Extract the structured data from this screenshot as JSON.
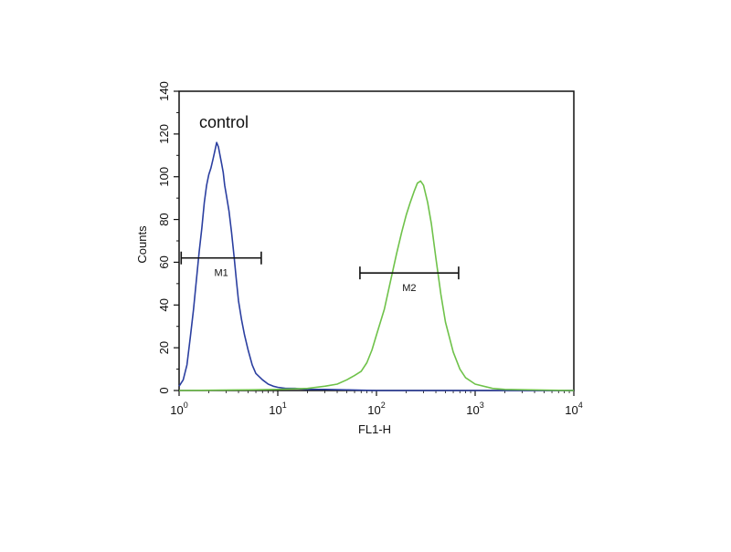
{
  "chart_data": {
    "type": "line",
    "title": "",
    "annotation": "control",
    "xlabel": "FL1-H",
    "ylabel": "Counts",
    "xscale": "log",
    "xlim": [
      1,
      10000
    ],
    "ylim": [
      0,
      140
    ],
    "yticks": [
      "0",
      "20",
      "40",
      "60",
      "80",
      "100",
      "120",
      "140"
    ],
    "xticks": [
      {
        "base": "10",
        "exp": "0",
        "value": 1
      },
      {
        "base": "10",
        "exp": "1",
        "value": 10
      },
      {
        "base": "10",
        "exp": "2",
        "value": 100
      },
      {
        "base": "10",
        "exp": "3",
        "value": 1000
      },
      {
        "base": "10",
        "exp": "4",
        "value": 10000
      }
    ],
    "grid": false,
    "series": [
      {
        "color": "#2b3fa0",
        "x": [
          1.0,
          1.1,
          1.2,
          1.3,
          1.4,
          1.5,
          1.6,
          1.7,
          1.8,
          1.9,
          2.0,
          2.1,
          2.2,
          2.3,
          2.4,
          2.5,
          2.6,
          2.7,
          2.8,
          2.9,
          3.0,
          3.2,
          3.4,
          3.6,
          3.8,
          4.0,
          4.3,
          4.6,
          5.0,
          5.5,
          6.0,
          7.0,
          8.0,
          9.0,
          10,
          12,
          15,
          20,
          30,
          50,
          100,
          1000,
          10000
        ],
        "y": [
          2,
          5,
          12,
          25,
          38,
          52,
          65,
          76,
          88,
          96,
          101,
          104,
          108,
          112,
          116,
          114,
          110,
          106,
          102,
          96,
          92,
          84,
          74,
          63,
          52,
          42,
          33,
          26,
          19,
          12,
          8,
          5,
          3,
          2,
          1.5,
          1,
          1,
          0.5,
          0.5,
          0.3,
          0,
          0,
          0
        ]
      },
      {
        "color": "#6fc24a",
        "x": [
          1,
          5,
          10,
          20,
          30,
          40,
          50,
          60,
          70,
          80,
          90,
          100,
          120,
          140,
          160,
          180,
          200,
          220,
          240,
          260,
          280,
          300,
          330,
          360,
          400,
          450,
          500,
          600,
          700,
          800,
          1000,
          1500,
          2000,
          5000,
          10000
        ],
        "y": [
          0,
          0.3,
          0.5,
          1,
          2,
          3,
          5,
          7,
          9,
          13,
          19,
          26,
          38,
          52,
          64,
          74,
          82,
          88,
          93,
          97,
          98,
          96,
          88,
          78,
          62,
          45,
          32,
          18,
          10,
          6,
          3,
          1,
          0.5,
          0.2,
          0
        ]
      }
    ],
    "markers": [
      {
        "label": "M1",
        "x_start": 1.05,
        "x_end": 6.8,
        "y": 62
      },
      {
        "label": "M2",
        "x_start": 68,
        "x_end": 680,
        "y": 55
      }
    ]
  }
}
